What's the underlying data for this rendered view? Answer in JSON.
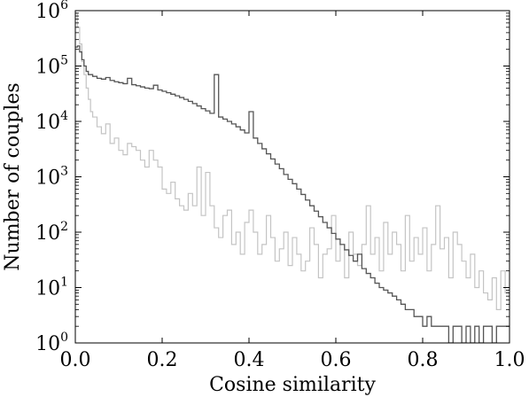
{
  "chart_data": {
    "type": "line",
    "title": "",
    "xlabel": "Cosine similarity",
    "ylabel": "Number of couples",
    "xlim": [
      0.0,
      1.0
    ],
    "ylim": [
      1,
      1000000
    ],
    "yscale": "log",
    "grid": false,
    "legend": "none",
    "x_ticks": [
      {
        "value": 0.0,
        "label": "0.0"
      },
      {
        "value": 0.2,
        "label": "0.2"
      },
      {
        "value": 0.4,
        "label": "0.4"
      },
      {
        "value": 0.6,
        "label": "0.6"
      },
      {
        "value": 0.8,
        "label": "0.8"
      },
      {
        "value": 1.0,
        "label": "1.0"
      }
    ],
    "y_ticks": [
      {
        "value": 1,
        "base": "10",
        "exp": "0"
      },
      {
        "value": 10,
        "base": "10",
        "exp": "1"
      },
      {
        "value": 100,
        "base": "10",
        "exp": "2"
      },
      {
        "value": 1000,
        "base": "10",
        "exp": "3"
      },
      {
        "value": 10000,
        "base": "10",
        "exp": "4"
      },
      {
        "value": 100000,
        "base": "10",
        "exp": "5"
      },
      {
        "value": 1000000,
        "base": "10",
        "exp": "6"
      }
    ],
    "series": [
      {
        "color": "#c4c4c4",
        "x": [
          0.0,
          0.005,
          0.01,
          0.015,
          0.02,
          0.025,
          0.03,
          0.035,
          0.04,
          0.05,
          0.06,
          0.07,
          0.08,
          0.09,
          0.1,
          0.11,
          0.12,
          0.13,
          0.14,
          0.15,
          0.16,
          0.17,
          0.18,
          0.19,
          0.2,
          0.21,
          0.22,
          0.23,
          0.24,
          0.25,
          0.26,
          0.27,
          0.28,
          0.29,
          0.3,
          0.31,
          0.32,
          0.33,
          0.34,
          0.35,
          0.36,
          0.37,
          0.38,
          0.39,
          0.4,
          0.41,
          0.42,
          0.43,
          0.44,
          0.45,
          0.46,
          0.47,
          0.48,
          0.49,
          0.5,
          0.51,
          0.52,
          0.53,
          0.54,
          0.55,
          0.56,
          0.57,
          0.58,
          0.59,
          0.6,
          0.61,
          0.62,
          0.63,
          0.64,
          0.65,
          0.66,
          0.67,
          0.68,
          0.69,
          0.7,
          0.71,
          0.72,
          0.73,
          0.74,
          0.75,
          0.76,
          0.77,
          0.78,
          0.79,
          0.8,
          0.81,
          0.82,
          0.83,
          0.84,
          0.85,
          0.86,
          0.87,
          0.88,
          0.89,
          0.9,
          0.91,
          0.92,
          0.93,
          0.94,
          0.95,
          0.96,
          0.97,
          0.98,
          0.99,
          1.0
        ],
        "y": [
          900000,
          500000,
          250000,
          120000,
          70000,
          40000,
          25000,
          15000,
          12000,
          8000,
          6000,
          9000,
          4000,
          5000,
          3000,
          2500,
          4000,
          3500,
          3000,
          2000,
          1500,
          3000,
          2000,
          1500,
          600,
          500,
          800,
          400,
          300,
          250,
          500,
          300,
          1500,
          200,
          1200,
          300,
          120,
          80,
          200,
          250,
          60,
          100,
          40,
          150,
          250,
          100,
          40,
          60,
          200,
          80,
          30,
          50,
          100,
          25,
          80,
          40,
          20,
          30,
          120,
          60,
          15,
          40,
          50,
          200,
          30,
          60,
          15,
          100,
          40,
          25,
          60,
          300,
          40,
          80,
          20,
          150,
          40,
          100,
          60,
          20,
          200,
          30,
          80,
          40,
          120,
          20,
          60,
          300,
          50,
          80,
          15,
          100,
          60,
          30,
          15,
          40,
          10,
          20,
          8,
          6,
          15,
          4,
          20,
          8,
          5
        ]
      },
      {
        "color": "#555555",
        "x": [
          0.0,
          0.005,
          0.01,
          0.015,
          0.02,
          0.025,
          0.03,
          0.04,
          0.05,
          0.06,
          0.07,
          0.08,
          0.09,
          0.1,
          0.11,
          0.12,
          0.13,
          0.14,
          0.15,
          0.16,
          0.17,
          0.18,
          0.19,
          0.2,
          0.21,
          0.22,
          0.23,
          0.24,
          0.25,
          0.26,
          0.27,
          0.28,
          0.29,
          0.3,
          0.31,
          0.32,
          0.33,
          0.34,
          0.35,
          0.36,
          0.37,
          0.38,
          0.39,
          0.4,
          0.41,
          0.42,
          0.43,
          0.44,
          0.45,
          0.46,
          0.47,
          0.48,
          0.49,
          0.5,
          0.51,
          0.52,
          0.53,
          0.54,
          0.55,
          0.56,
          0.57,
          0.58,
          0.59,
          0.6,
          0.61,
          0.62,
          0.63,
          0.64,
          0.65,
          0.66,
          0.67,
          0.68,
          0.69,
          0.7,
          0.71,
          0.72,
          0.73,
          0.74,
          0.75,
          0.76,
          0.77,
          0.78,
          0.79,
          0.8,
          0.81,
          0.82,
          0.83,
          0.84,
          0.85,
          0.86,
          0.87,
          0.88,
          0.89,
          0.9,
          0.91,
          0.92,
          0.93,
          0.94,
          0.95,
          0.96,
          0.97,
          0.98,
          0.99,
          1.0
        ],
        "y": [
          220000,
          230000,
          180000,
          130000,
          100000,
          80000,
          70000,
          65000,
          60000,
          58000,
          62000,
          55000,
          52000,
          50000,
          48000,
          60000,
          46000,
          44000,
          42000,
          40000,
          39000,
          45000,
          37000,
          35000,
          33000,
          31000,
          29000,
          27000,
          25000,
          23000,
          21000,
          19000,
          17000,
          15500,
          14000,
          70000,
          12000,
          11000,
          10000,
          9000,
          8000,
          7000,
          6200,
          15000,
          5000,
          4000,
          3200,
          2600,
          2100,
          1700,
          1400,
          1100,
          900,
          750,
          600,
          480,
          380,
          300,
          240,
          190,
          150,
          120,
          95,
          75,
          60,
          48,
          38,
          30,
          40,
          22,
          18,
          15,
          12,
          10,
          9,
          8,
          7,
          6,
          5,
          4,
          4,
          3,
          3,
          2,
          3,
          2,
          2,
          2,
          2,
          1,
          2,
          2,
          1,
          2,
          1,
          2,
          1,
          2,
          2,
          1,
          2,
          2,
          2,
          2
        ]
      }
    ]
  }
}
